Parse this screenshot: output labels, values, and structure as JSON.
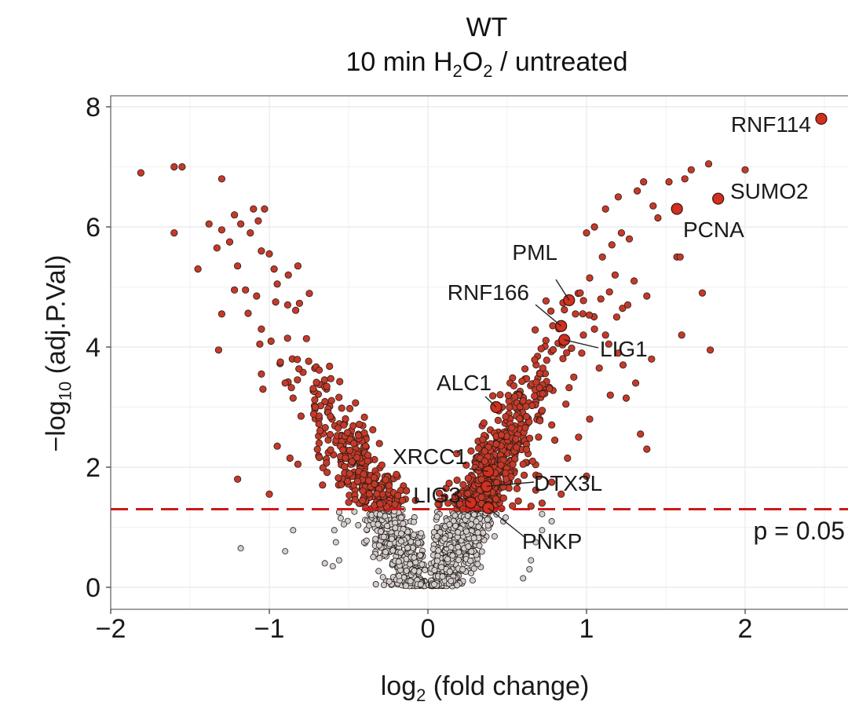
{
  "title": {
    "line1": "WT",
    "line2_pre": "10 min H",
    "sub_a": "2",
    "mid": "O",
    "sub_b": "2",
    "line2_post": " / untreated"
  },
  "axes": {
    "xlabel_pre": "log",
    "xlabel_sub": "2",
    "xlabel_post": " (fold change)",
    "ylabel_pre": "−log",
    "ylabel_sub": "10",
    "ylabel_post": " (adj.P.Val)",
    "xticks": [
      "−2",
      "−1",
      "0",
      "1",
      "2"
    ],
    "yticks": [
      "0",
      "2",
      "4",
      "6",
      "8"
    ]
  },
  "threshold": {
    "label": "p = 0.05",
    "neglog10p": 1.3,
    "color": "#cc1a1a"
  },
  "colors": {
    "significant": "#c43a2a",
    "nonsignificant": "#cfcfcf",
    "highlight": "#d03020",
    "outline": "#2a1a14"
  },
  "chart_data": {
    "type": "scatter",
    "xlim": [
      -2,
      2.6
    ],
    "ylim": [
      0,
      8.1
    ],
    "grid": true,
    "labeled_points": [
      {
        "name": "RNF114",
        "x": 2.48,
        "y": 7.8
      },
      {
        "name": "SUMO2",
        "x": 1.83,
        "y": 6.47
      },
      {
        "name": "PCNA",
        "x": 1.57,
        "y": 6.3
      },
      {
        "name": "PML",
        "x": 0.89,
        "y": 4.78
      },
      {
        "name": "RNF166",
        "x": 0.84,
        "y": 4.35
      },
      {
        "name": "LIG1",
        "x": 0.86,
        "y": 4.12
      },
      {
        "name": "ALC1",
        "x": 0.43,
        "y": 3.0
      },
      {
        "name": "XRCC1",
        "x": 0.38,
        "y": 1.93
      },
      {
        "name": "DTX3L",
        "x": 0.37,
        "y": 1.68
      },
      {
        "name": "LIG3",
        "x": 0.27,
        "y": 1.41
      },
      {
        "name": "PNKP",
        "x": 0.38,
        "y": 1.32
      }
    ],
    "significant_points": [
      [
        -1.81,
        6.9
      ],
      [
        -1.6,
        7.0
      ],
      [
        -1.55,
        7.0
      ],
      [
        -1.3,
        6.8
      ],
      [
        -1.6,
        5.9
      ],
      [
        -1.38,
        6.05
      ],
      [
        -1.45,
        5.3
      ],
      [
        -1.3,
        5.95
      ],
      [
        -1.22,
        6.2
      ],
      [
        -1.18,
        6.05
      ],
      [
        -1.1,
        6.3
      ],
      [
        -1.03,
        6.3
      ],
      [
        -1.07,
        6.1
      ],
      [
        -1.12,
        5.9
      ],
      [
        -1.25,
        5.75
      ],
      [
        -1.33,
        5.65
      ],
      [
        -1.2,
        5.35
      ],
      [
        -1.05,
        5.6
      ],
      [
        -1.0,
        5.55
      ],
      [
        -0.97,
        5.3
      ],
      [
        -0.95,
        5.05
      ],
      [
        -0.88,
        5.2
      ],
      [
        -0.82,
        5.35
      ],
      [
        -1.22,
        4.95
      ],
      [
        -1.15,
        4.95
      ],
      [
        -1.08,
        4.85
      ],
      [
        -0.96,
        4.75
      ],
      [
        -1.3,
        4.55
      ],
      [
        -1.32,
        3.95
      ],
      [
        -1.05,
        4.3
      ],
      [
        -1.06,
        4.05
      ],
      [
        -1.05,
        3.55
      ],
      [
        -1.04,
        3.3
      ],
      [
        -0.93,
        3.75
      ],
      [
        -0.9,
        3.4
      ],
      [
        -0.85,
        3.15
      ],
      [
        -0.8,
        2.85
      ],
      [
        -1.2,
        1.8
      ],
      [
        -1.0,
        1.55
      ],
      [
        -0.95,
        2.35
      ],
      [
        -0.87,
        2.15
      ],
      [
        -0.82,
        2.05
      ],
      [
        1.0,
        5.9
      ],
      [
        1.05,
        6.0
      ],
      [
        1.12,
        6.3
      ],
      [
        1.2,
        6.5
      ],
      [
        1.32,
        6.6
      ],
      [
        1.36,
        6.75
      ],
      [
        1.42,
        6.35
      ],
      [
        1.52,
        6.75
      ],
      [
        1.62,
        6.8
      ],
      [
        1.66,
        6.95
      ],
      [
        1.77,
        7.05
      ],
      [
        2.0,
        6.95
      ],
      [
        1.45,
        6.15
      ],
      [
        1.57,
        5.5
      ],
      [
        1.59,
        5.5
      ],
      [
        1.73,
        4.9
      ],
      [
        1.78,
        3.95
      ],
      [
        1.6,
        4.2
      ],
      [
        1.41,
        3.8
      ],
      [
        1.31,
        3.4
      ],
      [
        1.34,
        2.55
      ],
      [
        1.38,
        2.3
      ],
      [
        1.25,
        3.15
      ],
      [
        1.23,
        3.7
      ],
      [
        1.14,
        4.05
      ],
      [
        1.19,
        4.5
      ],
      [
        1.26,
        4.7
      ],
      [
        1.38,
        4.85
      ],
      [
        1.3,
        5.1
      ],
      [
        1.1,
        5.5
      ],
      [
        1.16,
        5.7
      ],
      [
        1.22,
        5.9
      ],
      [
        1.27,
        5.8
      ],
      [
        1.02,
        5.15
      ],
      [
        0.96,
        4.9
      ],
      [
        0.93,
        4.55
      ],
      [
        1.05,
        4.3
      ],
      [
        0.98,
        4.2
      ],
      [
        1.08,
        3.65
      ],
      [
        1.15,
        3.2
      ],
      [
        1.02,
        2.8
      ],
      [
        0.95,
        2.5
      ],
      [
        0.88,
        2.15
      ],
      [
        1.0,
        1.85
      ],
      [
        0.84,
        1.55
      ],
      [
        0.78,
        1.75
      ],
      [
        0.8,
        2.45
      ],
      [
        0.87,
        3.05
      ],
      [
        0.92,
        3.5
      ],
      [
        0.97,
        3.9
      ],
      [
        1.09,
        4.8
      ],
      [
        1.18,
        5.2
      ],
      [
        1.12,
        4.2
      ],
      [
        1.2,
        3.9
      ],
      [
        0.72,
        1.4
      ],
      [
        0.65,
        1.35
      ],
      [
        0.68,
        1.62
      ],
      [
        0.7,
        1.85
      ],
      [
        0.66,
        2.1
      ],
      [
        0.6,
        2.05
      ]
    ],
    "nonsignificant_outliers": [
      [
        -1.18,
        0.65
      ],
      [
        -0.9,
        0.6
      ],
      [
        -0.85,
        0.95
      ],
      [
        -0.65,
        0.4
      ],
      [
        -0.6,
        0.35
      ],
      [
        -0.56,
        0.45
      ],
      [
        -0.58,
        0.75
      ],
      [
        -0.59,
        0.95
      ],
      [
        -0.55,
        1.15
      ],
      [
        -0.53,
        1.05
      ],
      [
        -0.56,
        1.25
      ],
      [
        0.6,
        0.15
      ],
      [
        0.65,
        0.45
      ],
      [
        0.68,
        0.75
      ],
      [
        0.72,
        0.95
      ],
      [
        0.78,
        1.1
      ],
      [
        0.72,
        1.22
      ],
      [
        0.64,
        0.3
      ]
    ]
  }
}
